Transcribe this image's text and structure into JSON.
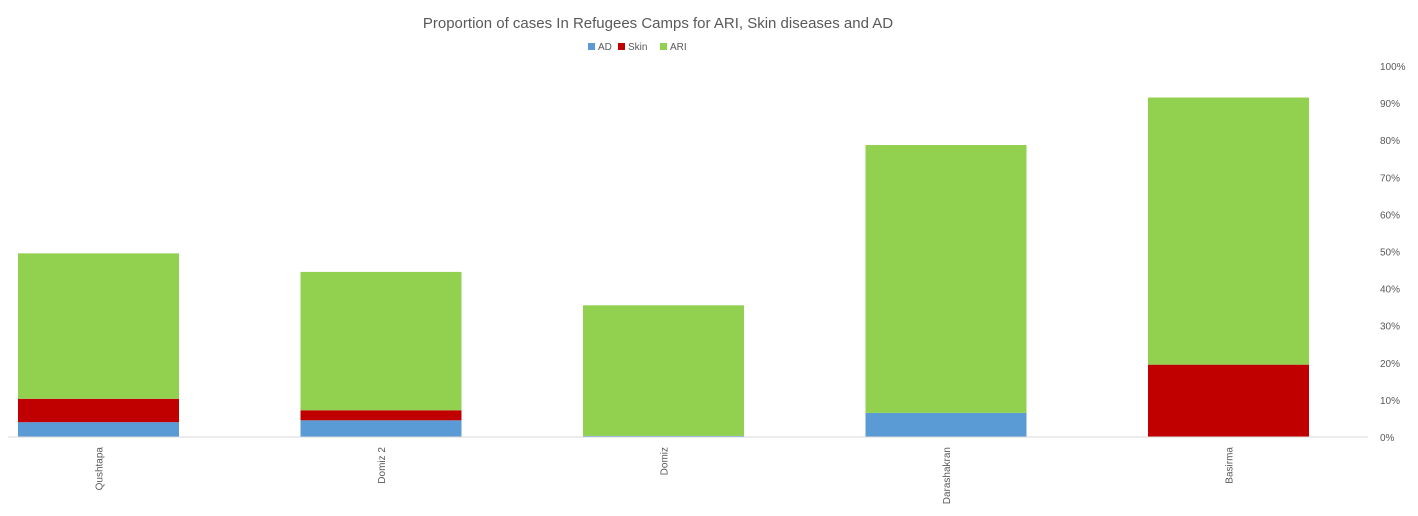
{
  "chart_data": {
    "type": "bar",
    "stacked": true,
    "title": "Proportion of cases In Refugees Camps for ARI, Skin diseases and AD",
    "categories": [
      "Qushtapa",
      "Domiz 2",
      "Domiz",
      "Darashakran",
      "Basirma"
    ],
    "series": [
      {
        "name": "AD",
        "color": "#5b9bd5",
        "values": [
          4,
          4.5,
          0.3,
          6.5,
          0
        ]
      },
      {
        "name": "Skin",
        "color": "#c00000",
        "values": [
          6.3,
          2.7,
          0,
          0,
          19.5
        ]
      },
      {
        "name": "ARI",
        "color": "#92d050",
        "values": [
          39.2,
          37.3,
          35.2,
          72.2,
          72
        ]
      }
    ],
    "ylim": [
      0,
      100
    ],
    "y_axis_position": "right",
    "y_ticks": [
      "0%",
      "10%",
      "20%",
      "30%",
      "40%",
      "50%",
      "60%",
      "70%",
      "80%",
      "90%",
      "100%"
    ],
    "legend_position": "top",
    "grid": false,
    "xlabel": "",
    "ylabel": ""
  }
}
